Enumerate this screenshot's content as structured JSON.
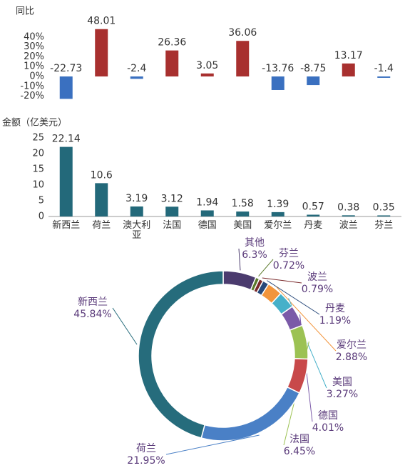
{
  "chart_data": [
    {
      "type": "bar",
      "title": "同比",
      "values": [
        -22.73,
        48.01,
        -2.4,
        26.36,
        3.05,
        36.06,
        -13.76,
        -8.75,
        13.17,
        -1.4
      ],
      "positive_color": "#a8302f",
      "negative_color": "#3a70c0",
      "ylim": [
        -25,
        50
      ],
      "yticks": [
        {
          "value": -20,
          "label": "-20%"
        },
        {
          "value": -10,
          "label": "-10%"
        },
        {
          "value": 0,
          "label": "0%"
        },
        {
          "value": 10,
          "label": "10%"
        },
        {
          "value": 20,
          "label": "20%"
        },
        {
          "value": 30,
          "label": "30%"
        },
        {
          "value": 40,
          "label": "40%"
        }
      ]
    },
    {
      "type": "bar",
      "title": "金额（亿美元）",
      "categories": [
        "新西兰",
        "荷兰",
        "澳大利亚",
        "法国",
        "德国",
        "美国",
        "爱尔兰",
        "丹麦",
        "波兰",
        "芬兰"
      ],
      "values": [
        22.14,
        10.6,
        3.19,
        3.12,
        1.94,
        1.58,
        1.39,
        0.57,
        0.38,
        0.35
      ],
      "color": "#23697a",
      "ylim": [
        0,
        25
      ],
      "yticks": [
        0,
        5,
        10,
        15,
        20,
        25
      ]
    },
    {
      "type": "pie",
      "categories": [
        "其他",
        "芬兰",
        "波兰",
        "丹麦",
        "爱尔兰",
        "美国",
        "德国",
        "法国",
        null,
        "荷兰",
        "新西兰"
      ],
      "values": [
        6.3,
        0.72,
        0.79,
        1.19,
        2.88,
        3.27,
        4.01,
        6.45,
        6.6,
        21.95,
        45.84
      ],
      "value_labels": [
        "6.3%",
        "0.72%",
        "0.79%",
        "1.19%",
        "2.88%",
        "3.27%",
        "4.01%",
        "6.45%",
        null,
        "21.95%",
        "45.84%"
      ],
      "colors": [
        "#4b3b6e",
        "#5b7a2b",
        "#7a2a2c",
        "#28497a",
        "#f2953c",
        "#46b0c9",
        "#7b5aa8",
        "#9cc253",
        "#c8494a",
        "#4a80c6",
        "#266c7c"
      ]
    }
  ]
}
